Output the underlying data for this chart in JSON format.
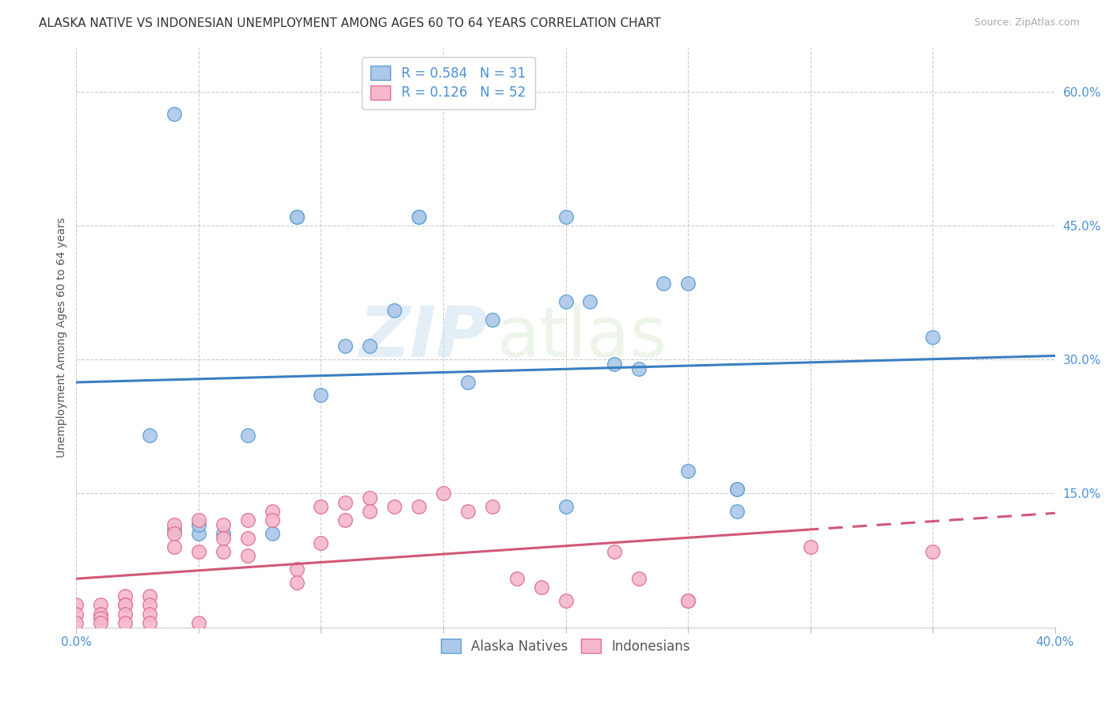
{
  "title": "ALASKA NATIVE VS INDONESIAN UNEMPLOYMENT AMONG AGES 60 TO 64 YEARS CORRELATION CHART",
  "source": "Source: ZipAtlas.com",
  "ylabel": "Unemployment Among Ages 60 to 64 years",
  "xlim": [
    0.0,
    0.4
  ],
  "ylim": [
    0.0,
    0.65
  ],
  "yticks": [
    0.0,
    0.15,
    0.3,
    0.45,
    0.6
  ],
  "alaska_R": 0.584,
  "alaska_N": 31,
  "indonesian_R": 0.126,
  "indonesian_N": 52,
  "alaska_color": "#adc8e8",
  "alaska_edge_color": "#5a9fd4",
  "alaska_line_color": "#3a7fc1",
  "indonesian_color": "#f5b8cb",
  "indonesian_edge_color": "#e07090",
  "indonesian_line_color": "#d05878",
  "background_color": "#ffffff",
  "watermark_zip": "ZIP",
  "watermark_atlas": "atlas",
  "alaska_points_x": [
    0.04,
    0.09,
    0.09,
    0.14,
    0.14,
    0.2,
    0.03,
    0.04,
    0.05,
    0.05,
    0.06,
    0.07,
    0.08,
    0.1,
    0.11,
    0.12,
    0.13,
    0.16,
    0.17,
    0.2,
    0.21,
    0.22,
    0.24,
    0.25,
    0.25,
    0.27,
    0.27,
    0.27,
    0.35,
    0.2,
    0.23
  ],
  "alaska_points_y": [
    0.575,
    0.46,
    0.46,
    0.46,
    0.46,
    0.46,
    0.215,
    0.11,
    0.105,
    0.115,
    0.105,
    0.215,
    0.105,
    0.26,
    0.315,
    0.315,
    0.355,
    0.275,
    0.345,
    0.365,
    0.365,
    0.295,
    0.385,
    0.385,
    0.175,
    0.155,
    0.13,
    0.155,
    0.325,
    0.135,
    0.29
  ],
  "indonesian_points_x": [
    0.0,
    0.0,
    0.0,
    0.01,
    0.01,
    0.01,
    0.02,
    0.02,
    0.02,
    0.02,
    0.03,
    0.03,
    0.03,
    0.04,
    0.04,
    0.04,
    0.05,
    0.05,
    0.06,
    0.06,
    0.06,
    0.07,
    0.07,
    0.07,
    0.08,
    0.08,
    0.09,
    0.09,
    0.1,
    0.1,
    0.11,
    0.11,
    0.12,
    0.12,
    0.13,
    0.14,
    0.15,
    0.16,
    0.17,
    0.18,
    0.19,
    0.2,
    0.22,
    0.23,
    0.25,
    0.25,
    0.3,
    0.35,
    0.01,
    0.02,
    0.03,
    0.05
  ],
  "indonesian_points_y": [
    0.025,
    0.015,
    0.005,
    0.025,
    0.015,
    0.01,
    0.035,
    0.025,
    0.025,
    0.015,
    0.035,
    0.025,
    0.015,
    0.115,
    0.105,
    0.09,
    0.12,
    0.085,
    0.115,
    0.1,
    0.085,
    0.12,
    0.1,
    0.08,
    0.13,
    0.12,
    0.065,
    0.05,
    0.135,
    0.095,
    0.14,
    0.12,
    0.145,
    0.13,
    0.135,
    0.135,
    0.15,
    0.13,
    0.135,
    0.055,
    0.045,
    0.03,
    0.085,
    0.055,
    0.03,
    0.03,
    0.09,
    0.085,
    0.005,
    0.005,
    0.005,
    0.005
  ],
  "title_fontsize": 11,
  "axis_label_fontsize": 10,
  "tick_fontsize": 11,
  "legend_fontsize": 12
}
